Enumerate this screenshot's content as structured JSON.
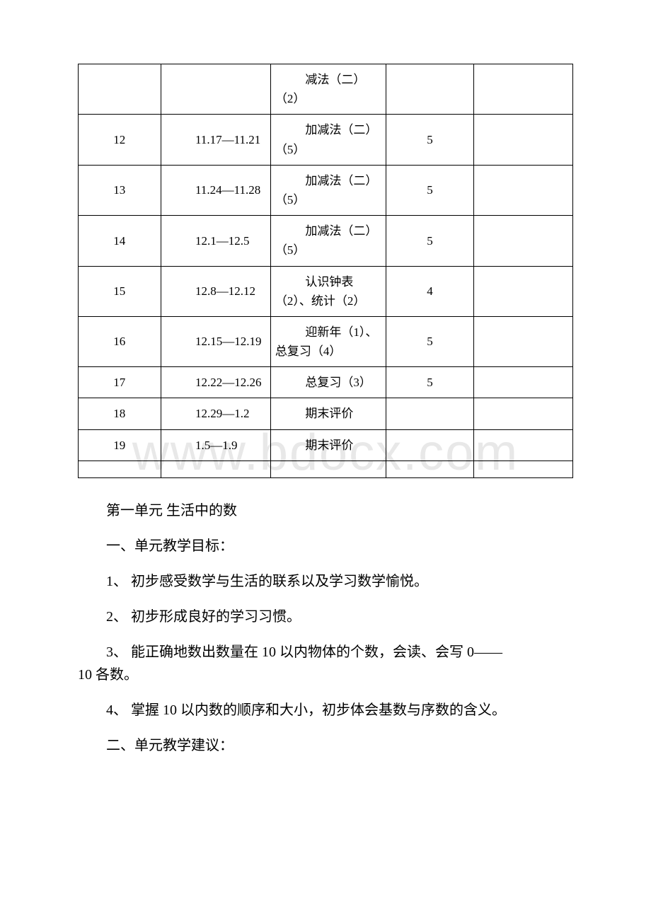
{
  "watermark": "www.bdocx.com",
  "table": {
    "rows": [
      {
        "week": "",
        "date": "",
        "content": "减法（二）（2）",
        "hours": "",
        "note": ""
      },
      {
        "week": "12",
        "date": "11.17—11.21",
        "content": "加减法（二）（5）",
        "hours": "5",
        "note": ""
      },
      {
        "week": "13",
        "date": "11.24—11.28",
        "content": "加减法（二）（5）",
        "hours": "5",
        "note": ""
      },
      {
        "week": "14",
        "date": "12.1—12.5",
        "content": "加减法（二）（5）",
        "hours": "5",
        "note": ""
      },
      {
        "week": "15",
        "date": "12.8—12.12",
        "content": "认识钟表（2）、统计（2）",
        "hours": "4",
        "note": ""
      },
      {
        "week": "16",
        "date": "12.15—12.19",
        "content": "迎新年（1）、总复习（4）",
        "hours": "5",
        "note": ""
      },
      {
        "week": "17",
        "date": "12.22—12.26",
        "content": "总复习（3）",
        "hours": "5",
        "note": ""
      },
      {
        "week": "18",
        "date": "12.29—1.2",
        "content": "期末评价",
        "hours": "",
        "note": ""
      },
      {
        "week": "19",
        "date": "1.5—1.9",
        "content": "期末评价",
        "hours": "",
        "note": ""
      }
    ]
  },
  "section": {
    "title": "第一单元 生活中的数",
    "heading1": "一、单元教学目标：",
    "item1": "1、 初步感受数学与生活的联系以及学习数学愉悦。",
    "item2": "2、 初步形成良好的学习习惯。",
    "item3_line1": "3、 能正确地数出数量在 10 以内物体的个数，会读、会写 0——",
    "item3_line2": "10 各数。",
    "item4": "4、 掌握 10 以内数的顺序和大小，初步体会基数与序数的含义。",
    "heading2": "二、单元教学建议："
  },
  "styles": {
    "background_color": "#ffffff",
    "border_color": "#000000",
    "text_color": "#000000",
    "watermark_color": "#e8e8e8",
    "body_font_size": 20,
    "table_font_size": 17,
    "watermark_font_size": 72
  }
}
